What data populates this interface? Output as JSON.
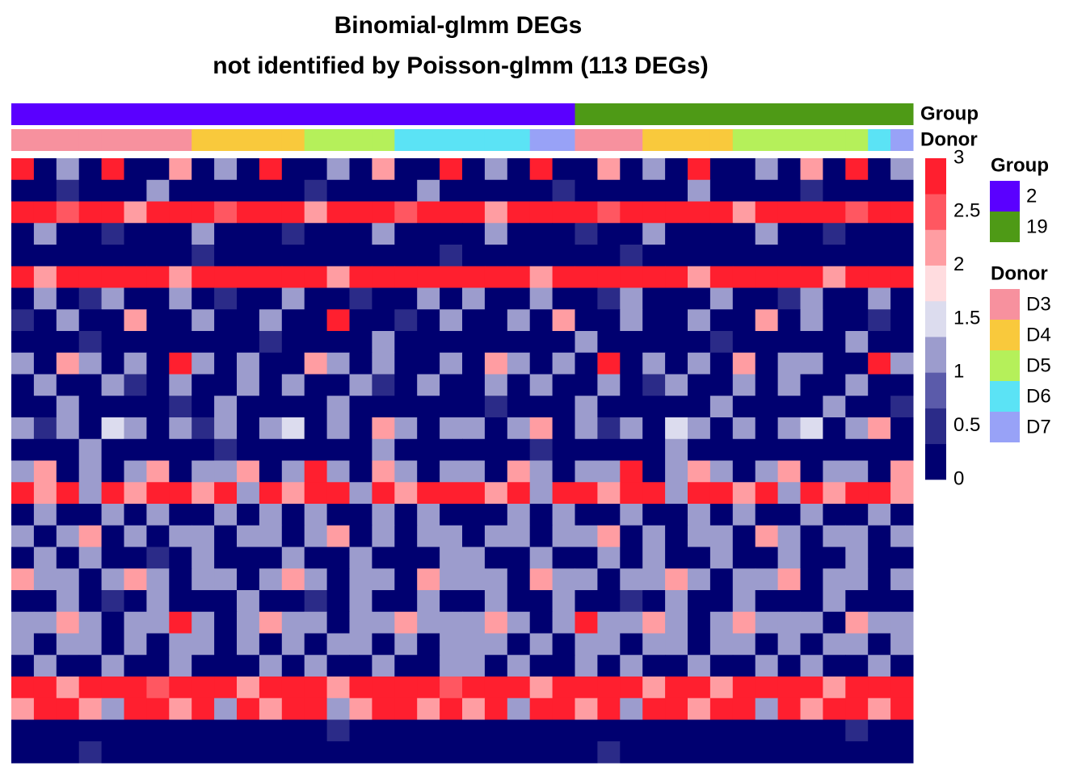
{
  "chart_data": {
    "type": "heatmap",
    "title": "Binomial-glmm DEGs",
    "subtitle": "not identified by Poisson-glmm (113 DEGs)",
    "color_scale": {
      "lim": [
        0,
        3
      ],
      "ticks": [
        0,
        0.5,
        1,
        1.5,
        2,
        2.5,
        3
      ],
      "colors": [
        "#000070",
        "#2b2b88",
        "#5b5baa",
        "#9c9ccd",
        "#dcdcee",
        "#ffdcdf",
        "#ff9da2",
        "#ff5761",
        "#ff1f2f"
      ]
    },
    "annotations": [
      {
        "name": "Group",
        "levels": [
          "2",
          "19"
        ],
        "colors": [
          "#5a00ff",
          "#4e9a16"
        ],
        "values": [
          "2",
          "2",
          "2",
          "2",
          "2",
          "2",
          "2",
          "2",
          "2",
          "2",
          "2",
          "2",
          "2",
          "2",
          "2",
          "2",
          "2",
          "2",
          "2",
          "2",
          "2",
          "2",
          "2",
          "2",
          "2",
          "19",
          "19",
          "19",
          "19",
          "19",
          "19",
          "19",
          "19",
          "19",
          "19",
          "19",
          "19",
          "19",
          "19",
          "19"
        ]
      },
      {
        "name": "Donor",
        "levels": [
          "D3",
          "D4",
          "D5",
          "D6",
          "D7"
        ],
        "colors": [
          "#f7919e",
          "#f9c93c",
          "#b5f05a",
          "#5be3f5",
          "#98a2f7"
        ],
        "values": [
          "D3",
          "D3",
          "D3",
          "D3",
          "D3",
          "D3",
          "D3",
          "D3",
          "D4",
          "D4",
          "D4",
          "D4",
          "D4",
          "D5",
          "D5",
          "D5",
          "D5",
          "D6",
          "D6",
          "D6",
          "D6",
          "D6",
          "D6",
          "D7",
          "D7",
          "D3",
          "D3",
          "D3",
          "D4",
          "D4",
          "D4",
          "D4",
          "D5",
          "D5",
          "D5",
          "D5",
          "D5",
          "D5",
          "D6",
          "D7"
        ]
      }
    ],
    "values": [
      [
        3,
        0,
        1,
        0,
        3,
        0,
        0,
        2,
        0,
        1,
        0,
        3,
        0,
        0,
        1,
        0,
        2,
        0,
        0,
        3,
        0,
        1,
        0,
        3,
        0,
        0,
        2,
        0,
        1,
        0,
        3,
        0,
        0,
        1,
        0,
        2,
        0,
        3,
        0,
        1
      ],
      [
        0,
        0,
        0.5,
        0,
        0,
        0,
        1,
        0,
        0,
        0,
        0,
        0,
        0,
        0.5,
        0,
        0,
        0,
        0,
        1,
        0,
        0,
        0,
        0,
        0,
        0.5,
        0,
        0,
        0,
        0,
        0,
        1,
        0,
        0,
        0,
        0,
        0.5,
        0,
        0,
        0,
        0
      ],
      [
        3,
        3,
        2.5,
        3,
        3,
        2,
        3,
        3,
        3,
        2.5,
        3,
        3,
        3,
        2,
        3,
        3,
        3,
        2.5,
        3,
        3,
        3,
        2,
        3,
        3,
        3,
        3,
        2.5,
        3,
        3,
        3,
        3,
        3,
        2,
        3,
        3,
        3,
        3,
        2.5,
        3,
        3
      ],
      [
        0,
        1,
        0,
        0,
        0.5,
        0,
        0,
        0,
        1,
        0,
        0,
        0,
        0.5,
        0,
        0,
        0,
        1,
        0,
        0,
        0,
        0,
        1,
        0,
        0,
        0,
        0.5,
        0,
        0,
        1,
        0,
        0,
        0,
        0,
        1,
        0,
        0,
        0.5,
        0,
        0,
        0
      ],
      [
        0,
        0,
        0,
        0,
        0,
        0,
        0,
        0,
        0.5,
        0,
        0,
        0,
        0,
        0,
        0,
        0,
        0,
        0,
        0,
        0.5,
        0,
        0,
        0,
        0,
        0,
        0,
        0,
        0.5,
        0,
        0,
        0,
        0,
        0,
        0,
        0,
        0,
        0,
        0,
        0,
        0
      ],
      [
        3,
        2,
        3,
        3,
        3,
        3,
        3,
        2,
        3,
        3,
        3,
        3,
        3,
        3,
        2,
        3,
        3,
        3,
        3,
        3,
        3,
        3,
        3,
        2,
        3,
        3,
        3,
        3,
        3,
        3,
        2,
        3,
        3,
        3,
        3,
        3,
        2,
        3,
        3,
        3
      ],
      [
        0,
        1,
        0,
        0.5,
        1,
        0,
        0,
        1,
        0,
        0.5,
        0,
        0,
        1,
        0,
        0,
        0.5,
        0,
        0,
        1,
        0,
        1,
        0,
        0,
        1,
        0,
        0,
        0.5,
        1,
        0,
        0,
        0,
        1,
        0,
        0,
        0.5,
        1,
        0,
        0,
        1,
        0
      ],
      [
        0.5,
        0,
        1,
        0,
        0,
        2,
        0,
        0,
        1,
        0,
        0,
        1,
        0,
        0,
        3,
        0,
        0,
        0.5,
        0,
        1,
        0,
        0,
        1,
        0,
        2,
        0,
        0,
        1,
        0,
        0,
        1,
        0,
        0,
        2,
        0,
        1,
        0,
        0,
        0.5,
        0
      ],
      [
        0,
        0,
        0,
        0.5,
        0,
        0,
        0,
        0,
        0,
        0,
        0,
        0.5,
        0,
        0,
        0,
        0,
        1,
        0,
        0,
        0,
        0,
        0,
        0,
        0,
        0,
        1,
        0,
        0,
        0,
        0,
        0,
        0.5,
        0,
        0,
        0,
        0,
        0,
        1,
        0,
        0
      ],
      [
        1,
        0,
        2,
        1,
        0,
        1,
        0,
        3,
        1,
        0,
        1,
        0,
        0,
        2,
        1,
        0,
        1,
        0,
        0,
        1,
        0,
        2,
        1,
        0,
        1,
        0,
        3,
        0,
        1,
        0,
        1,
        0,
        2,
        0,
        1,
        1,
        0,
        0,
        3,
        1
      ],
      [
        0,
        1,
        0,
        0,
        1,
        0.5,
        0,
        1,
        0,
        0,
        1,
        0,
        1,
        0,
        0,
        1,
        0.5,
        0,
        1,
        0,
        0,
        1,
        0,
        1,
        0,
        0,
        1,
        0,
        0.5,
        1,
        0,
        0,
        1,
        0,
        1,
        0,
        0,
        1,
        0,
        0
      ],
      [
        0,
        0,
        1,
        0,
        0,
        0,
        0,
        0.5,
        0,
        1,
        0,
        0,
        0,
        0,
        1,
        0,
        0,
        0,
        0,
        0,
        0,
        0.5,
        0,
        0,
        0,
        1,
        0,
        0,
        0,
        0,
        0,
        1,
        0,
        0,
        0,
        0,
        1,
        0,
        0,
        0.5
      ],
      [
        1,
        0.5,
        1,
        0,
        1.5,
        1,
        0,
        1,
        0.5,
        1,
        0,
        1,
        1.5,
        0,
        1,
        0,
        2,
        1,
        0,
        1,
        1,
        0,
        1,
        2,
        0,
        1,
        0.5,
        1,
        0,
        1.5,
        1,
        0,
        1,
        0,
        1,
        1.5,
        0,
        1,
        2,
        0
      ],
      [
        0,
        0,
        0,
        1,
        0,
        0,
        0,
        0,
        0,
        0.5,
        0,
        0,
        0,
        0,
        0,
        0,
        1,
        0,
        0,
        0,
        0,
        0,
        0,
        0.5,
        0,
        0,
        0,
        0,
        0,
        1,
        0,
        0,
        0,
        0,
        0,
        0,
        0,
        0,
        0,
        0
      ],
      [
        1,
        2,
        0,
        1,
        0,
        1,
        2,
        0,
        1,
        1,
        2,
        0,
        1,
        3,
        1,
        0,
        2,
        1,
        0,
        1,
        1,
        0,
        2,
        1,
        0,
        1,
        1,
        3,
        0,
        1,
        2,
        1,
        0,
        1,
        2,
        0,
        1,
        1,
        0,
        2
      ],
      [
        3,
        2,
        3,
        1,
        3,
        2,
        3,
        3,
        2,
        3,
        1,
        3,
        2,
        3,
        3,
        1,
        3,
        2,
        3,
        3,
        3,
        2,
        3,
        1,
        3,
        3,
        2,
        3,
        3,
        1,
        3,
        3,
        2,
        3,
        1,
        3,
        2,
        3,
        3,
        2
      ],
      [
        0,
        1,
        0,
        0,
        1,
        0,
        1,
        0,
        0,
        1,
        0,
        1,
        0,
        1,
        0,
        0,
        1,
        0,
        1,
        0,
        0,
        0,
        1,
        0,
        1,
        0,
        0,
        1,
        0,
        0,
        1,
        0,
        1,
        0,
        0,
        1,
        0,
        0,
        1,
        0
      ],
      [
        1,
        0,
        1,
        2,
        0,
        1,
        0,
        1,
        1,
        0,
        1,
        1,
        0,
        1,
        2,
        0,
        1,
        0,
        1,
        1,
        0,
        1,
        1,
        0,
        1,
        1,
        2,
        0,
        1,
        0,
        1,
        1,
        0,
        2,
        1,
        0,
        1,
        1,
        0,
        1
      ],
      [
        0,
        1,
        0,
        1,
        0,
        0,
        0.5,
        0,
        1,
        0,
        0,
        0,
        1,
        0,
        0,
        1,
        0,
        0,
        0,
        1,
        1,
        0,
        0,
        1,
        0,
        0,
        1,
        0,
        1,
        0,
        0,
        1,
        0,
        0,
        1,
        0,
        0,
        1,
        0,
        0
      ],
      [
        2,
        1,
        1,
        0,
        1,
        2,
        1,
        0,
        1,
        1,
        0,
        1,
        2,
        1,
        0,
        1,
        1,
        0,
        2,
        1,
        1,
        1,
        0,
        2,
        1,
        1,
        0,
        1,
        1,
        2,
        1,
        0,
        1,
        1,
        2,
        0,
        1,
        1,
        0,
        1
      ],
      [
        0,
        0,
        1,
        0,
        0.5,
        0,
        1,
        0,
        0,
        0,
        1,
        0,
        0,
        0.5,
        0,
        1,
        0,
        0,
        1,
        0,
        0,
        1,
        0,
        0,
        1,
        0,
        0,
        0.5,
        0,
        1,
        0,
        0,
        1,
        0,
        0,
        0,
        1,
        0,
        0,
        0
      ],
      [
        1,
        1,
        2,
        1,
        0,
        1,
        1,
        3,
        1,
        0,
        1,
        2,
        1,
        1,
        0,
        1,
        1,
        2,
        1,
        1,
        1,
        2,
        1,
        0,
        1,
        3,
        1,
        1,
        2,
        1,
        0,
        1,
        2,
        1,
        1,
        1,
        0,
        2,
        1,
        1
      ],
      [
        1,
        0,
        1,
        1,
        0,
        1,
        0,
        1,
        1,
        0,
        1,
        0,
        1,
        0,
        1,
        1,
        0,
        1,
        0,
        1,
        1,
        1,
        0,
        1,
        0,
        1,
        1,
        0,
        1,
        1,
        0,
        1,
        1,
        0,
        1,
        0,
        1,
        1,
        0,
        1
      ],
      [
        0,
        1,
        0,
        0,
        1,
        0,
        0,
        1,
        0,
        0,
        0,
        1,
        0,
        1,
        0,
        0,
        1,
        0,
        0,
        1,
        1,
        0,
        1,
        0,
        0,
        1,
        0,
        1,
        0,
        0,
        1,
        0,
        0,
        1,
        0,
        1,
        0,
        0,
        1,
        0
      ],
      [
        3,
        3,
        2,
        3,
        3,
        3,
        2.5,
        3,
        3,
        3,
        2,
        3,
        3,
        3,
        2,
        3,
        3,
        3,
        3,
        2.5,
        3,
        3,
        3,
        2,
        3,
        3,
        3,
        3,
        2,
        3,
        3,
        2,
        3,
        3,
        3,
        3,
        2,
        3,
        3,
        3
      ],
      [
        2,
        3,
        3,
        2,
        1,
        3,
        3,
        2,
        3,
        1,
        3,
        2,
        3,
        3,
        1,
        2,
        3,
        3,
        2,
        3,
        2,
        3,
        1,
        3,
        3,
        2,
        3,
        1,
        3,
        3,
        2,
        3,
        3,
        1,
        3,
        2,
        3,
        3,
        2,
        3
      ],
      [
        0,
        0,
        0,
        0,
        0,
        0,
        0,
        0,
        0,
        0,
        0,
        0,
        0,
        0,
        0.5,
        0,
        0,
        0,
        0,
        0,
        0,
        0,
        0,
        0,
        0,
        0,
        0,
        0,
        0,
        0,
        0,
        0,
        0,
        0,
        0,
        0,
        0,
        0.5,
        0,
        0
      ],
      [
        0,
        0,
        0,
        0.5,
        0,
        0,
        0,
        0,
        0,
        0,
        0,
        0,
        0,
        0,
        0,
        0,
        0,
        0,
        0,
        0,
        0,
        0,
        0,
        0,
        0,
        0,
        0.5,
        0,
        0,
        0,
        0,
        0,
        0,
        0,
        0,
        0,
        0,
        0,
        0,
        0
      ]
    ]
  }
}
